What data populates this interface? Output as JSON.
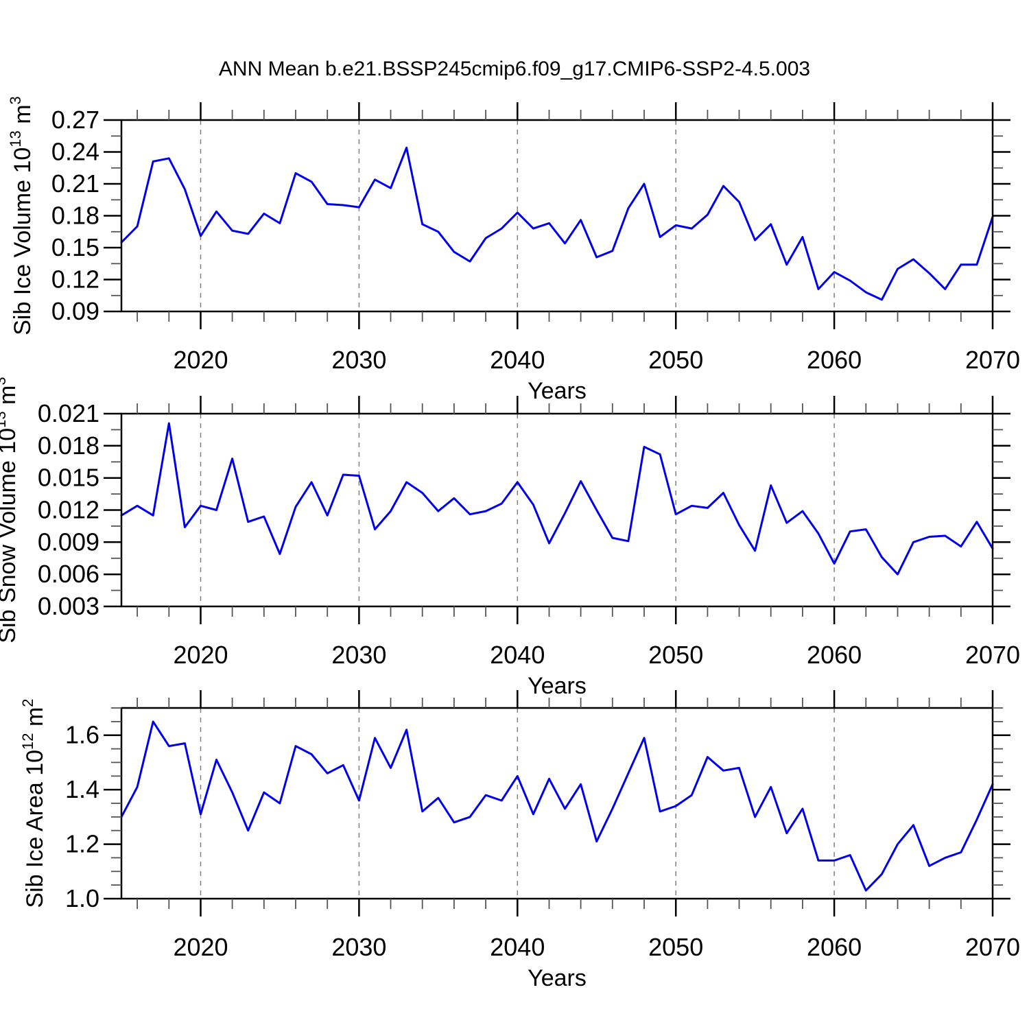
{
  "title": "ANN Mean b.e21.BSSP245cmip6.f09_g17.CMIP6-SSP2-4.5.003",
  "years": [
    2015,
    2016,
    2017,
    2018,
    2019,
    2020,
    2021,
    2022,
    2023,
    2024,
    2025,
    2026,
    2027,
    2028,
    2029,
    2030,
    2031,
    2032,
    2033,
    2034,
    2035,
    2036,
    2037,
    2038,
    2039,
    2040,
    2041,
    2042,
    2043,
    2044,
    2045,
    2046,
    2047,
    2048,
    2049,
    2050,
    2051,
    2052,
    2053,
    2054,
    2055,
    2056,
    2057,
    2058,
    2059,
    2060,
    2061,
    2062,
    2063,
    2064,
    2065,
    2066,
    2067,
    2068,
    2069,
    2070
  ],
  "chart_data": [
    {
      "type": "line",
      "name": "sib-ice-volume",
      "ylabel_plain": "Sib Ice Volume 10^13 m^3",
      "ylabel_parts": [
        {
          "t": "Sib Ice Volume 10"
        },
        {
          "t": "13",
          "sup": true
        },
        {
          "t": " m"
        },
        {
          "t": "3",
          "sup": true
        }
      ],
      "xlabel": "Years",
      "x_range": [
        2015,
        2070
      ],
      "x_major_ticks": [
        2020,
        2030,
        2040,
        2050,
        2060,
        2070
      ],
      "x_minor_step": 2,
      "x_gridlines": [
        2020,
        2030,
        2040,
        2050,
        2060
      ],
      "ylim": [
        0.09,
        0.27
      ],
      "y_major_step": 0.03,
      "y_minor_step": 0.015,
      "y_decimals": 2,
      "grid": "vertical-dashed",
      "legend": "none",
      "line_color": "#0000EE",
      "values": [
        0.155,
        0.17,
        0.231,
        0.234,
        0.205,
        0.161,
        0.184,
        0.166,
        0.163,
        0.182,
        0.173,
        0.22,
        0.212,
        0.191,
        0.19,
        0.188,
        0.214,
        0.206,
        0.244,
        0.172,
        0.165,
        0.146,
        0.137,
        0.159,
        0.168,
        0.183,
        0.168,
        0.173,
        0.154,
        0.176,
        0.141,
        0.147,
        0.187,
        0.21,
        0.16,
        0.171,
        0.168,
        0.181,
        0.208,
        0.193,
        0.157,
        0.172,
        0.134,
        0.16,
        0.111,
        0.127,
        0.119,
        0.108,
        0.101,
        0.13,
        0.139,
        0.126,
        0.111,
        0.134,
        0.134,
        0.179
      ]
    },
    {
      "type": "line",
      "name": "sib-snow-volume",
      "ylabel_plain": "Sib Snow Volume 10^13 m^3",
      "ylabel_parts": [
        {
          "t": "Sib Snow Volume 10"
        },
        {
          "t": "13",
          "sup": true
        },
        {
          "t": " m"
        },
        {
          "t": "3",
          "sup": true
        }
      ],
      "xlabel": "Years",
      "x_range": [
        2015,
        2070
      ],
      "x_major_ticks": [
        2020,
        2030,
        2040,
        2050,
        2060,
        2070
      ],
      "x_minor_step": 2,
      "x_gridlines": [
        2020,
        2030,
        2040,
        2050,
        2060
      ],
      "ylim": [
        0.003,
        0.021
      ],
      "y_major_step": 0.003,
      "y_minor_step": 0.0015,
      "y_decimals": 3,
      "grid": "vertical-dashed",
      "legend": "none",
      "line_color": "#0000EE",
      "values": [
        0.0115,
        0.0124,
        0.0115,
        0.0201,
        0.0104,
        0.0124,
        0.012,
        0.0168,
        0.0109,
        0.0114,
        0.0079,
        0.0123,
        0.0146,
        0.0115,
        0.0153,
        0.0152,
        0.0102,
        0.0119,
        0.0146,
        0.0136,
        0.0119,
        0.0131,
        0.0116,
        0.0119,
        0.0126,
        0.0146,
        0.0125,
        0.0089,
        0.0117,
        0.0147,
        0.012,
        0.0094,
        0.0091,
        0.0179,
        0.0172,
        0.0116,
        0.0124,
        0.0122,
        0.0136,
        0.0106,
        0.0082,
        0.0143,
        0.0108,
        0.0119,
        0.0098,
        0.007,
        0.01,
        0.0102,
        0.0076,
        0.006,
        0.009,
        0.0095,
        0.0096,
        0.0086,
        0.0109,
        0.0084
      ]
    },
    {
      "type": "line",
      "name": "sib-ice-area",
      "ylabel_plain": "Sib Ice Area 10^12 m^2",
      "ylabel_parts": [
        {
          "t": "Sib Ice Area 10"
        },
        {
          "t": "12",
          "sup": true
        },
        {
          "t": " m"
        },
        {
          "t": "2",
          "sup": true
        }
      ],
      "xlabel": "Years",
      "x_range": [
        2015,
        2070
      ],
      "x_major_ticks": [
        2020,
        2030,
        2040,
        2050,
        2060,
        2070
      ],
      "x_minor_step": 2,
      "x_gridlines": [
        2020,
        2030,
        2040,
        2050,
        2060
      ],
      "ylim": [
        1.0,
        1.7
      ],
      "y_major_step": 0.2,
      "y_minor_step": 0.05,
      "y_decimals": 1,
      "grid": "vertical-dashed",
      "legend": "none",
      "line_color": "#0000EE",
      "values": [
        1.3,
        1.41,
        1.65,
        1.56,
        1.57,
        1.31,
        1.51,
        1.39,
        1.25,
        1.39,
        1.35,
        1.56,
        1.53,
        1.46,
        1.49,
        1.36,
        1.59,
        1.48,
        1.62,
        1.32,
        1.37,
        1.28,
        1.3,
        1.38,
        1.36,
        1.45,
        1.31,
        1.44,
        1.33,
        1.42,
        1.21,
        1.33,
        1.46,
        1.59,
        1.32,
        1.34,
        1.38,
        1.52,
        1.47,
        1.48,
        1.3,
        1.41,
        1.24,
        1.33,
        1.14,
        1.14,
        1.16,
        1.03,
        1.09,
        1.2,
        1.27,
        1.12,
        1.15,
        1.17,
        1.29,
        1.42
      ]
    }
  ]
}
